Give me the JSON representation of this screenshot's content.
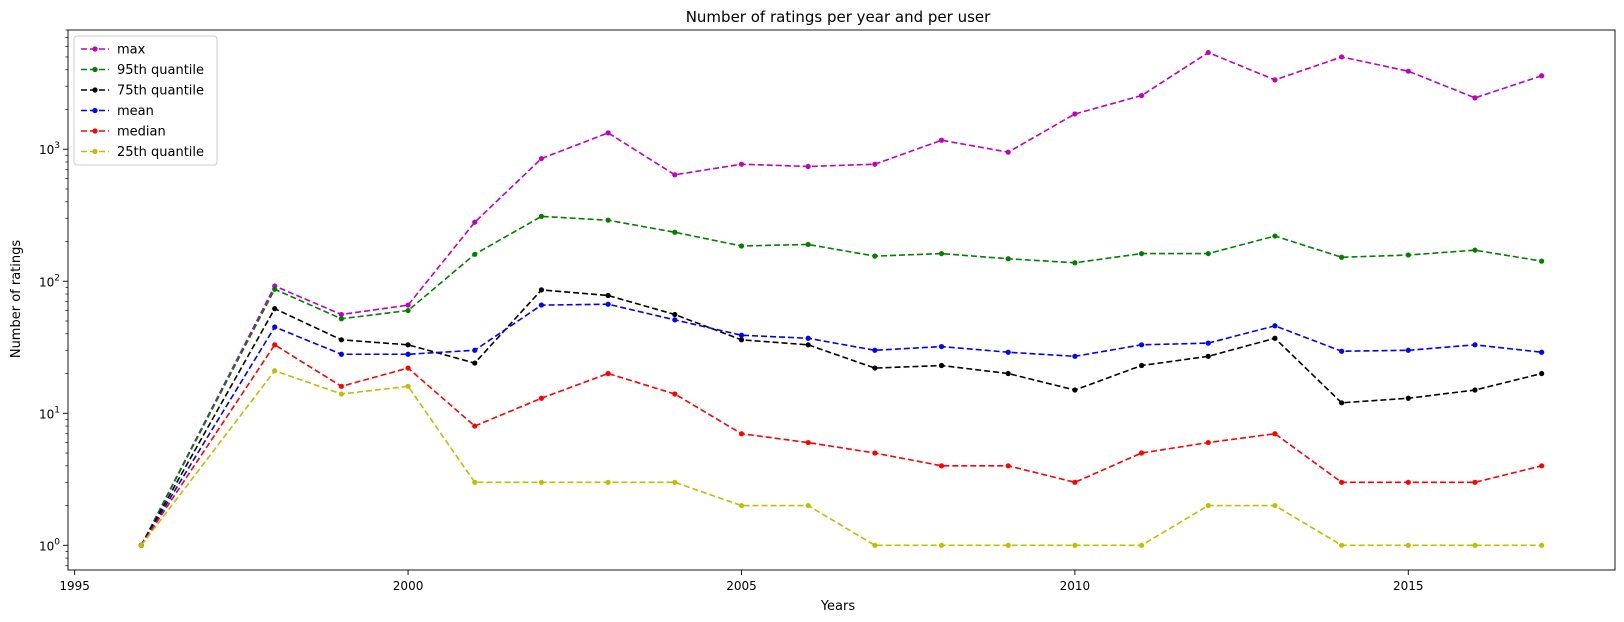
{
  "chart_data": {
    "type": "line",
    "title": "Number of ratings per year and per user",
    "xlabel": "Years",
    "ylabel": "Number of ratings",
    "yscale": "log",
    "xlim": [
      1994.9,
      2018.1
    ],
    "ylim": [
      0.65,
      8000
    ],
    "xticks": [
      1995,
      2000,
      2005,
      2010,
      2015
    ],
    "yticks": [
      {
        "value": 1,
        "base": "10",
        "exp": "0"
      },
      {
        "value": 10,
        "base": "10",
        "exp": "1"
      },
      {
        "value": 100,
        "base": "10",
        "exp": "2"
      },
      {
        "value": 1000,
        "base": "10",
        "exp": "3"
      }
    ],
    "grid": false,
    "legend_position": "top-left",
    "line_style": "dashed",
    "marker": "circle",
    "x": [
      1996,
      1998,
      1999,
      2000,
      2001,
      2002,
      2003,
      2004,
      2005,
      2006,
      2007,
      2008,
      2009,
      2010,
      2011,
      2012,
      2013,
      2014,
      2015,
      2016,
      2017
    ],
    "series": [
      {
        "name": "max",
        "color": "#bf00bf",
        "values": [
          1,
          92,
          56,
          66,
          280,
          850,
          1330,
          640,
          770,
          740,
          770,
          1170,
          950,
          1850,
          2550,
          5400,
          3350,
          5000,
          3900,
          2450,
          3600
        ]
      },
      {
        "name": "95th quantile",
        "color": "#008000",
        "values": [
          1,
          87,
          52,
          60,
          160,
          310,
          290,
          235,
          185,
          190,
          155,
          162,
          148,
          138,
          162,
          162,
          220,
          152,
          158,
          172,
          142
        ]
      },
      {
        "name": "75th quantile",
        "color": "#000000",
        "values": [
          1,
          62,
          36,
          33,
          24,
          86,
          78,
          56,
          36,
          33,
          22,
          23,
          20,
          15,
          23,
          27,
          37,
          12,
          13,
          15,
          20
        ]
      },
      {
        "name": "mean",
        "color": "#0000ff",
        "values": [
          1,
          45,
          28,
          28,
          30,
          66,
          67,
          51,
          39,
          37,
          30,
          32,
          29,
          27,
          33,
          34,
          46,
          29.5,
          30,
          33,
          29
        ]
      },
      {
        "name": "median",
        "color": "#ff0000",
        "values": [
          1,
          33,
          16,
          22,
          8,
          13,
          20,
          14,
          7,
          6,
          5,
          4,
          4,
          3,
          5,
          6,
          7,
          3,
          3,
          3,
          4
        ]
      },
      {
        "name": "25th quantile",
        "color": "#bfbf00",
        "values": [
          1,
          21,
          14,
          16,
          3,
          3,
          3,
          3,
          2,
          2,
          1,
          1,
          1,
          1,
          1,
          2,
          2,
          1,
          1,
          1,
          1
        ]
      }
    ]
  }
}
